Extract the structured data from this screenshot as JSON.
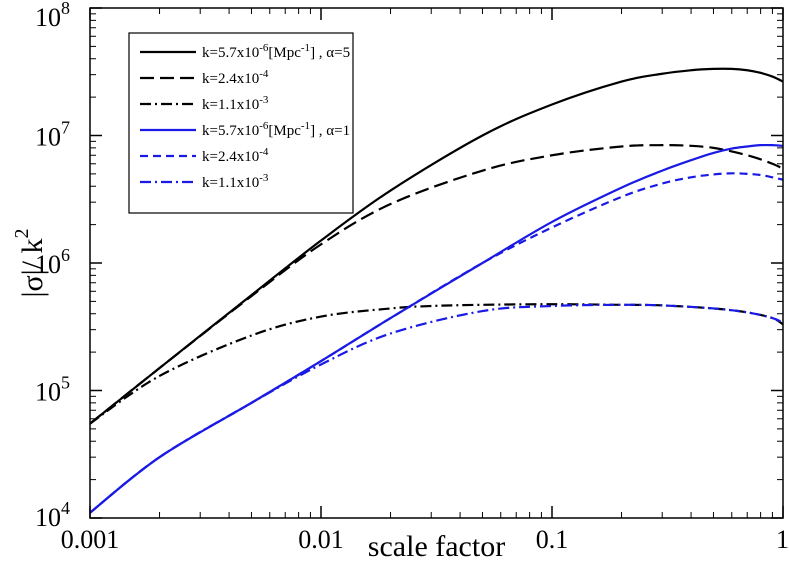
{
  "chart_data": {
    "type": "line",
    "title": "",
    "xlabel": "scale factor",
    "ylabel": "|σ|/ k^2",
    "xscale": "log",
    "yscale": "log",
    "xlim": [
      0.001,
      1
    ],
    "ylim": [
      10000,
      100000000
    ],
    "x_ticks": [
      {
        "value": 0.001,
        "label": "0.001"
      },
      {
        "value": 0.01,
        "label": "0.01"
      },
      {
        "value": 0.1,
        "label": "0.1"
      },
      {
        "value": 1,
        "label": "1"
      }
    ],
    "y_ticks": [
      {
        "value": 10000,
        "base": "10",
        "exp": "4"
      },
      {
        "value": 100000,
        "base": "10",
        "exp": "5"
      },
      {
        "value": 1000000,
        "base": "10",
        "exp": "6"
      },
      {
        "value": 10000000,
        "base": "10",
        "exp": "7"
      },
      {
        "value": 100000000,
        "base": "10",
        "exp": "8"
      }
    ],
    "legend_position": "top-left",
    "series": [
      {
        "name": "k=5.7x10^-6[Mpc^-1], α=5",
        "legend": [
          {
            "t": "k=5.7x10"
          },
          {
            "t": "-6",
            "sup": true
          },
          {
            "t": "[Mpc"
          },
          {
            "t": "-1",
            "sup": true
          },
          {
            "t": "] ,  α=5"
          }
        ],
        "color": "#000000",
        "dash": "solid",
        "x": [
          0.001,
          0.002,
          0.005,
          0.01,
          0.02,
          0.05,
          0.1,
          0.2,
          0.3,
          0.4,
          0.5,
          0.6,
          0.7,
          0.8,
          0.9,
          1.0
        ],
        "y": [
          55000,
          150000,
          560000,
          1500000,
          3700000,
          10000000,
          17500000,
          26500000,
          30500000,
          32500000,
          33300000,
          33300000,
          32500000,
          31000000,
          29000000,
          26500000
        ]
      },
      {
        "name": "k=2.4x10^-4",
        "legend": [
          {
            "t": "k=2.4x10"
          },
          {
            "t": "-4",
            "sup": true
          }
        ],
        "color": "#000000",
        "dash": "long-dash",
        "x": [
          0.001,
          0.002,
          0.005,
          0.01,
          0.02,
          0.05,
          0.1,
          0.2,
          0.3,
          0.4,
          0.5,
          0.6,
          0.7,
          0.8,
          0.9,
          1.0
        ],
        "y": [
          55000,
          150000,
          550000,
          1400000,
          2900000,
          5300000,
          7000000,
          8200000,
          8400000,
          8300000,
          8000000,
          7500000,
          7000000,
          6500000,
          6000000,
          5500000
        ]
      },
      {
        "name": "k=1.1x10^-3",
        "legend": [
          {
            "t": "k=1.1x10"
          },
          {
            "t": "-3",
            "sup": true
          }
        ],
        "color": "#000000",
        "dash": "dash-dot",
        "x": [
          0.001,
          0.002,
          0.005,
          0.01,
          0.02,
          0.03,
          0.05,
          0.1,
          0.2,
          0.3,
          0.5,
          0.7,
          0.9,
          1.0
        ],
        "y": [
          55000,
          130000,
          270000,
          380000,
          440000,
          460000,
          470000,
          475000,
          470000,
          465000,
          440000,
          410000,
          370000,
          330000
        ]
      },
      {
        "name": "k=5.7x10^-6[Mpc^-1], α=1",
        "legend": [
          {
            "t": "k=5.7x10"
          },
          {
            "t": "-6",
            "sup": true
          },
          {
            "t": "[Mpc"
          },
          {
            "t": "-1",
            "sup": true
          },
          {
            "t": "] ,  α=1"
          }
        ],
        "color": "#1a1ae6",
        "dash": "solid",
        "x": [
          0.001,
          0.002,
          0.005,
          0.01,
          0.02,
          0.05,
          0.1,
          0.2,
          0.3,
          0.4,
          0.5,
          0.6,
          0.7,
          0.8,
          0.9,
          1.0
        ],
        "y": [
          11000,
          30000,
          80000,
          170000,
          370000,
          1000000,
          2100000,
          3900000,
          5300000,
          6400000,
          7300000,
          7900000,
          8200000,
          8400000,
          8400000,
          8300000
        ]
      },
      {
        "name": "k=2.4x10^-4",
        "legend": [
          {
            "t": "k=2.4x10"
          },
          {
            "t": "-4",
            "sup": true
          }
        ],
        "color": "#1a1ae6",
        "dash": "short-dash",
        "x": [
          0.001,
          0.002,
          0.005,
          0.01,
          0.02,
          0.05,
          0.1,
          0.2,
          0.3,
          0.4,
          0.5,
          0.6,
          0.7,
          0.8,
          0.9,
          1.0
        ],
        "y": [
          11000,
          30000,
          80000,
          170000,
          370000,
          1000000,
          1900000,
          3300000,
          4200000,
          4700000,
          4950000,
          5050000,
          5000000,
          4900000,
          4700000,
          4500000
        ]
      },
      {
        "name": "k=1.1x10^-3",
        "legend": [
          {
            "t": "k=1.1x10"
          },
          {
            "t": "-3",
            "sup": true
          }
        ],
        "color": "#1a1ae6",
        "dash": "dash-dot",
        "x": [
          0.001,
          0.002,
          0.005,
          0.01,
          0.02,
          0.05,
          0.1,
          0.2,
          0.3,
          0.5,
          0.7,
          0.9,
          1.0
        ],
        "y": [
          11000,
          30000,
          80000,
          160000,
          280000,
          420000,
          460000,
          470000,
          465000,
          440000,
          410000,
          370000,
          340000
        ]
      }
    ]
  }
}
